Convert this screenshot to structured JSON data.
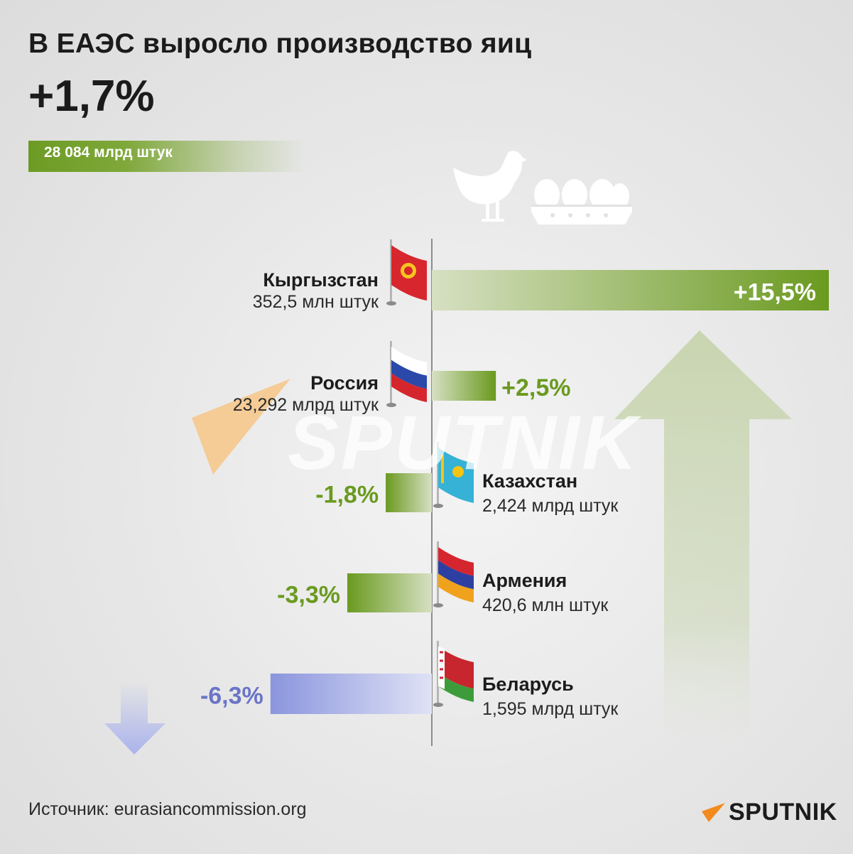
{
  "title": "В ЕАЭС выросло производство яиц",
  "total_change": "+1,7%",
  "total_amount": "28 084 млрд штук",
  "source": "Источник: eurasiancommission.org",
  "brand": "SPUTNIK",
  "watermark": "SPUTNIK",
  "colors": {
    "positive": "#6a9a1f",
    "negative_belarus": "#8a95dd",
    "brand_orange": "#f28a1d",
    "axis": "#8c8c8c"
  },
  "icons": [
    "hen-icon",
    "egg-tray-icon",
    "up-arrow-icon",
    "down-arrow-icon"
  ],
  "chart_data": {
    "type": "bar",
    "orientation": "horizontal",
    "title": "В ЕАЭС выросло производство яиц",
    "unit": "%",
    "categories": [
      "Кыргызстан",
      "Россия",
      "Казахстан",
      "Армения",
      "Беларусь"
    ],
    "values": [
      15.5,
      2.5,
      -1.8,
      -3.3,
      -6.3
    ],
    "value_labels": [
      "+15,5%",
      "+2,5%",
      "-1,8%",
      "-3,3%",
      "-6,3%"
    ],
    "amounts": [
      "352,5 млн штук",
      "23,292 млрд штук",
      "2,424 млрд штук",
      "420,6 млн штук",
      "1,595 млрд штук"
    ],
    "bar_colors": [
      "#6a9a1f",
      "#6a9a1f",
      "#6a9a1f",
      "#6a9a1f",
      "#8a95dd"
    ],
    "xlim": [
      -10,
      15.5
    ]
  }
}
